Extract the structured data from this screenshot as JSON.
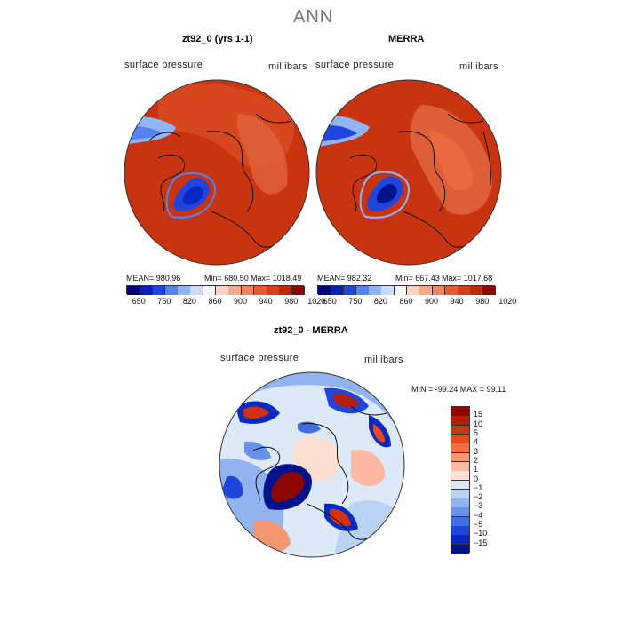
{
  "figure": {
    "title": "ANN"
  },
  "panels": [
    {
      "id": "model",
      "subtitle": "zt92_0 (yrs 1-1)",
      "field_label": "surface pressure",
      "units_label": "millibars",
      "stats": {
        "mean": "MEAN= 980.96",
        "min": "Min= 680.50",
        "max": "Max= 1018.49"
      }
    },
    {
      "id": "obs",
      "subtitle": "MERRA",
      "field_label": "surface pressure",
      "units_label": "millibars",
      "stats": {
        "mean": "MEAN= 982.32",
        "min": "Min= 667.43",
        "max": "Max= 1017.68"
      }
    },
    {
      "id": "diff",
      "subtitle": "zt92_0 - MERRA",
      "field_label": "surface pressure",
      "units_label": "millibars",
      "stats": {
        "minmax": "MIN = -99.24 MAX =  99.11"
      }
    }
  ],
  "colorbars": {
    "absolute": {
      "ticks": [
        "650",
        "750",
        "820",
        "860",
        "900",
        "940",
        "980",
        "1020"
      ],
      "colors": [
        "#00007a",
        "#0a1fb4",
        "#1e46e6",
        "#5583f0",
        "#90b4f5",
        "#c8dcfa",
        "#f5f5f5",
        "#f8d2c2",
        "#f5aa8c",
        "#f0825f",
        "#ea5a32",
        "#dc3c14",
        "#c02808",
        "#8c0800"
      ]
    },
    "difference": {
      "ticks": [
        "15",
        "10",
        "5",
        "4",
        "3",
        "2",
        "1",
        "0",
        "−1",
        "−2",
        "−3",
        "−4",
        "−5",
        "−10",
        "−15"
      ],
      "colors": [
        "#8c0800",
        "#b41e0a",
        "#d2320f",
        "#e64b1e",
        "#f06e41",
        "#f59673",
        "#fab9a0",
        "#fde0d2",
        "#dceaf8",
        "#b9d3f5",
        "#91b4f0",
        "#6991eb",
        "#416ee6",
        "#1e46dc",
        "#0a28c3",
        "#00128c"
      ]
    },
    "map_palette": {
      "high": "#c8340f",
      "high_dark": "#b82a08",
      "mid": "#e0643c",
      "low": "#1e46dc",
      "land_line": "#111111"
    }
  }
}
